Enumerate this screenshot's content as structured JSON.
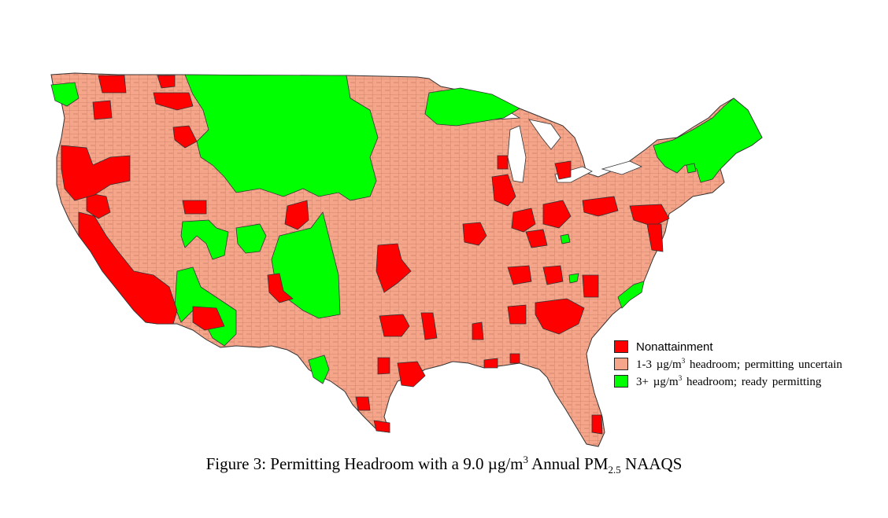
{
  "colors": {
    "nonattainment": "#ff0000",
    "uncertain": "#f4a58a",
    "ready": "#00ff00",
    "border": "#3a3a3a"
  },
  "legend": {
    "items": [
      {
        "label": "Nonattainment",
        "color": "#ff0000"
      },
      {
        "label": "1-3 µg/m³ headroom; permitting uncertain",
        "color": "#f4a58a",
        "pre": "1-3 µg/m",
        "sup": "3",
        "post": " headroom; permitting uncertain"
      },
      {
        "label": "3+ µg/m³ headroom; ready permitting",
        "color": "#00ff00",
        "pre": "3+ µg/m",
        "sup": "3",
        "post": " headroom; ready permitting"
      }
    ]
  },
  "caption": {
    "prefix": "Figure 3:  Permitting Headroom with a 9.0 µg/m",
    "sup": "3",
    "mid": " Annual PM",
    "sub": "2.5",
    "suffix": " NAAQS"
  }
}
